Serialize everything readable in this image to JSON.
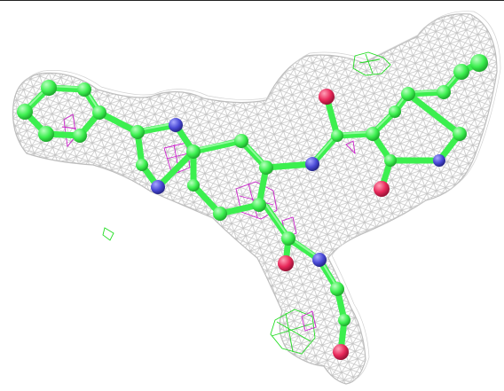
{
  "colors": {
    "background": "#ffffff",
    "density_mesh": "#c4c4c4",
    "carbon": "#3cef4f",
    "carbon_highlight": "#b9ffc0",
    "nitrogen": "#4a4ad6",
    "oxygen": "#e8285a",
    "positive_difference_density": "#22dd22",
    "negative_difference_density": "#cc22cc"
  },
  "icons": [
    "electron-density-mesh",
    "ball-and-stick-ligand"
  ]
}
